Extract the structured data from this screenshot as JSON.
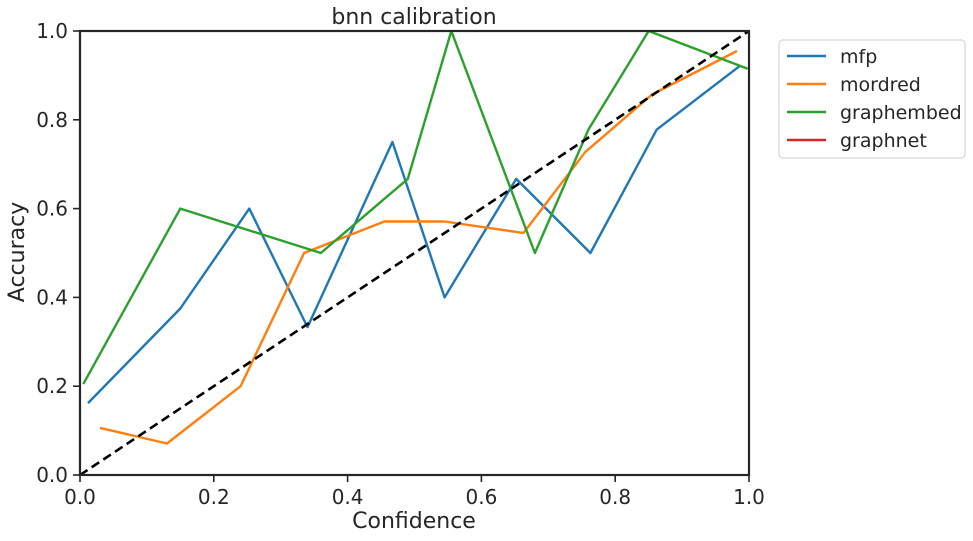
{
  "chart_data": {
    "type": "line",
    "title": "bnn calibration",
    "xlabel": "Confidence",
    "ylabel": "Accuracy",
    "xlim": [
      0.0,
      1.0
    ],
    "ylim": [
      0.0,
      1.0
    ],
    "xticks": [
      "0.0",
      "0.2",
      "0.4",
      "0.6",
      "0.8",
      "1.0"
    ],
    "yticks": [
      "0.0",
      "0.2",
      "0.4",
      "0.6",
      "0.8",
      "1.0"
    ],
    "grid": false,
    "legend": "outside-upper-right",
    "reference_line": {
      "x": [
        0,
        1
      ],
      "y": [
        0,
        1
      ],
      "style": "dashed",
      "color": "#000000"
    },
    "series": [
      {
        "name": "mfp",
        "color": "#1f77b4",
        "x": [
          0.012,
          0.15,
          0.253,
          0.34,
          0.467,
          0.545,
          0.652,
          0.763,
          0.862,
          0.987
        ],
        "y": [
          0.162,
          0.375,
          0.6,
          0.333,
          0.75,
          0.4,
          0.667,
          0.5,
          0.778,
          0.922
        ]
      },
      {
        "name": "mordred",
        "color": "#ff7f0e",
        "x": [
          0.03,
          0.13,
          0.24,
          0.335,
          0.455,
          0.545,
          0.663,
          0.755,
          0.855,
          0.982
        ],
        "y": [
          0.106,
          0.071,
          0.2,
          0.5,
          0.571,
          0.571,
          0.545,
          0.727,
          0.857,
          0.955
        ]
      },
      {
        "name": "graphembed",
        "color": "#2ca02c",
        "x": [
          0.005,
          0.15,
          0.36,
          0.49,
          0.555,
          0.68,
          0.76,
          0.85,
          0.998
        ],
        "y": [
          0.205,
          0.6,
          0.5,
          0.667,
          1.0,
          0.5,
          0.778,
          1.0,
          0.915
        ]
      },
      {
        "name": "graphnet",
        "color": "#d62728",
        "x": [],
        "y": []
      }
    ]
  }
}
